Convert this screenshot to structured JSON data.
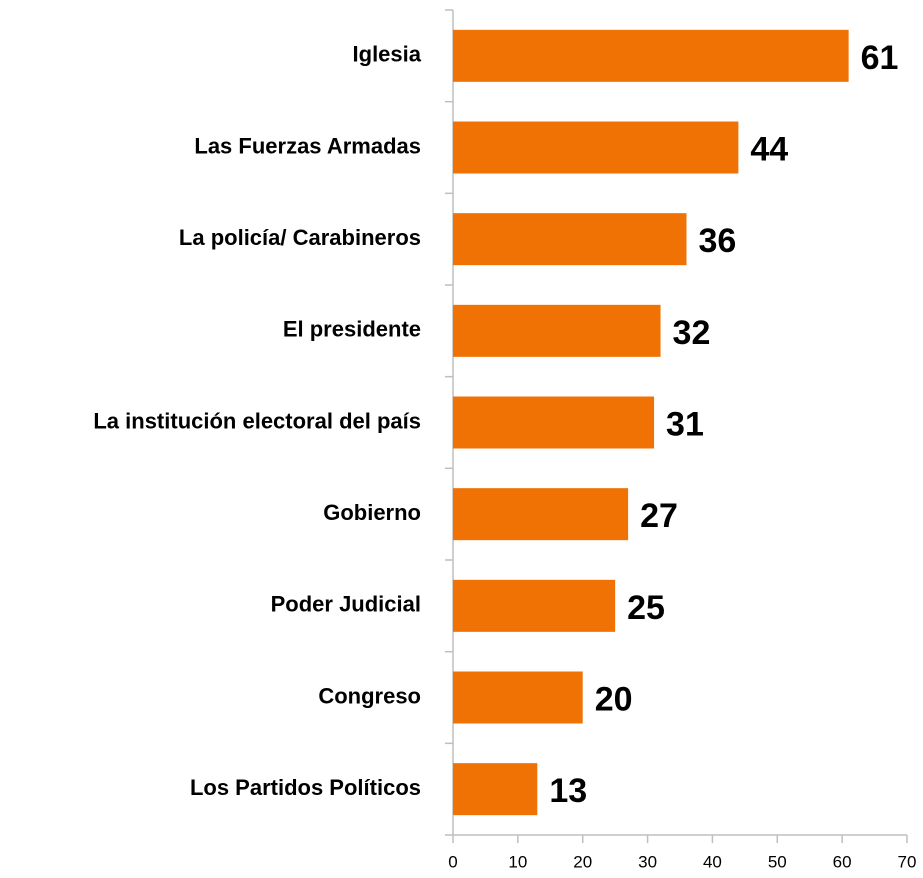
{
  "chart_data": {
    "type": "barh",
    "categories": [
      "Iglesia",
      "Las Fuerzas Armadas",
      "La policía/ Carabineros",
      "El presidente",
      "La institución electoral del país",
      "Gobierno",
      "Poder Judicial",
      "Congreso",
      "Los Partidos Políticos"
    ],
    "values": [
      61,
      44,
      36,
      32,
      31,
      27,
      25,
      20,
      13
    ],
    "color": "#f07204",
    "xlim": [
      0,
      70
    ],
    "xticks": [
      0,
      10,
      20,
      30,
      40,
      50,
      60,
      70
    ],
    "grid": false
  }
}
